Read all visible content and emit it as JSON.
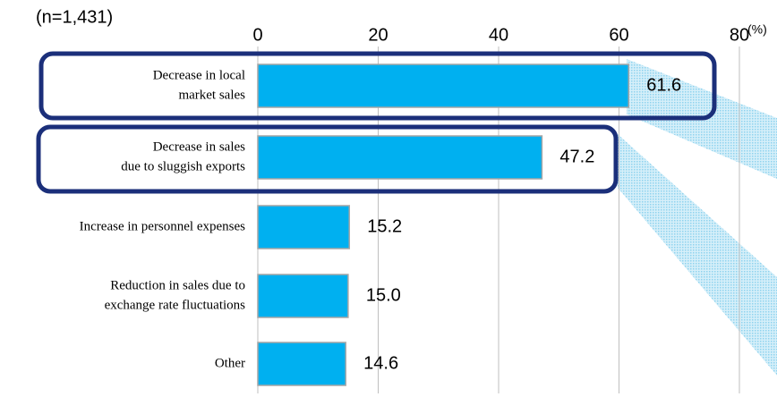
{
  "chart_data": {
    "type": "hbar",
    "note": "(n=1,431)",
    "unit": "(%)",
    "categories": [
      [
        "Decrease in local",
        "market sales"
      ],
      [
        "Decrease in sales",
        "due to sluggish exports"
      ],
      [
        "Increase in personnel expenses"
      ],
      [
        "Reduction in sales due to",
        "exchange rate fluctuations"
      ],
      [
        "Other"
      ]
    ],
    "values": [
      61.6,
      47.2,
      15.2,
      15.0,
      14.6
    ],
    "value_labels": [
      "61.6",
      "47.2",
      "15.2",
      "15.0",
      "14.6"
    ],
    "color": "#00b0f0",
    "xlim": [
      0,
      80
    ],
    "xticks": [
      0,
      20,
      40,
      60,
      80
    ],
    "grid": true
  }
}
